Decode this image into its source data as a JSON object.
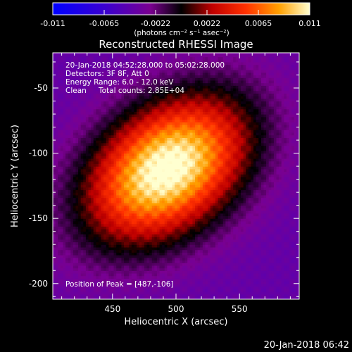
{
  "colorbar": {
    "ticks": [
      "-0.011",
      "-0.0065",
      "-0.0022",
      "0.0022",
      "0.0065",
      "0.011"
    ],
    "units": "(photons cm⁻² s⁻¹ asec⁻²)"
  },
  "timestamp": "20-Jan-2018 06:42",
  "chart_data": {
    "type": "heatmap",
    "title": "Reconstructed RHESSI Image",
    "xlabel": "Heliocentric X (arcsec)",
    "ylabel": "Heliocentric Y (arcsec)",
    "xlim": [
      403,
      597
    ],
    "ylim": [
      -212,
      -23
    ],
    "x_ticks": [
      "450",
      "500",
      "550"
    ],
    "x_tick_values": [
      450,
      500,
      550
    ],
    "y_ticks": [
      "-50",
      "-100",
      "-150",
      "-200"
    ],
    "y_tick_values": [
      -50,
      -100,
      -150,
      -200
    ],
    "zlim": [
      -0.011,
      0.011
    ],
    "colormap": "rainbow-black-purple-red-yellow-white",
    "source": {
      "center_x": 493,
      "center_y": -112,
      "sigma_major": 32,
      "sigma_minor": 48,
      "major_axis_angle_deg": -55,
      "peak": 0.011
    },
    "peak_position": [
      487,
      -106
    ],
    "annotations": {
      "time_range": "20-Jan-2018 04:52:28.000 to 05:02:28.000",
      "detectors": "Detectors: 3F 8F, Att 0",
      "energy": "Energy Range: 6.0 - 12.0 keV",
      "method": "Clean",
      "counts": "Total counts: 2.85E+04",
      "peak": "Position of Peak = [487,-106]"
    }
  }
}
